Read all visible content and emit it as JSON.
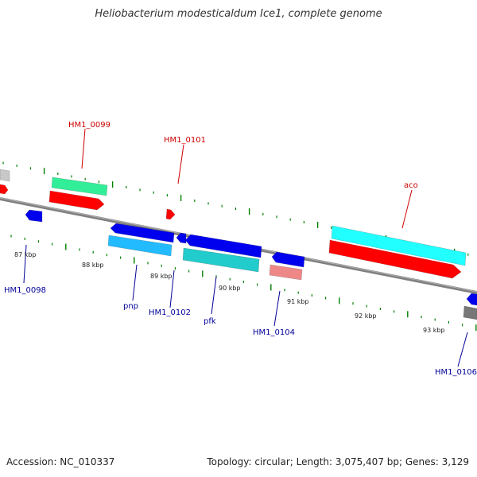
{
  "title": "Heliobacterium modesticaldum Ice1, complete genome",
  "footer": {
    "accession": "Accession: NC_010337",
    "summary": "Topology: circular; Length: 3,075,407 bp; Genes: 3,129"
  },
  "colors": {
    "label_red": "#cc0000",
    "label_blue": "#000099",
    "backbone": "#808080",
    "ticks": "#008000"
  },
  "ruler": [
    {
      "label": "87 kbp"
    },
    {
      "label": "88 kbp"
    },
    {
      "label": "89 kbp"
    },
    {
      "label": "90 kbp"
    },
    {
      "label": "91 kbp"
    },
    {
      "label": "92 kbp"
    },
    {
      "label": "93 kbp"
    }
  ],
  "gene_labels": [
    {
      "id": "HM1_0099",
      "side": "top"
    },
    {
      "id": "HM1_0101",
      "side": "top"
    },
    {
      "id": "aco",
      "side": "top"
    },
    {
      "id": "HM1_0098",
      "side": "bottom"
    },
    {
      "id": "pnp",
      "side": "bottom"
    },
    {
      "id": "HM1_0102",
      "side": "bottom"
    },
    {
      "id": "pfk",
      "side": "bottom"
    },
    {
      "id": "HM1_0104",
      "side": "bottom"
    },
    {
      "id": "HM1_0106",
      "side": "bottom"
    }
  ],
  "features": [
    {
      "name": "gray-feature-left",
      "color": "#c8c8c8"
    },
    {
      "name": "red-arrow-left-edge",
      "color": "#ff0000"
    },
    {
      "name": "green-feature",
      "color": "#33ee99"
    },
    {
      "name": "red-feature-0099",
      "color": "#ff0000"
    },
    {
      "name": "blue-arrow-0098",
      "color": "#0000ee"
    },
    {
      "name": "red-arrow-0101",
      "color": "#ff0000"
    },
    {
      "name": "blue-arrow-pnp",
      "color": "#0000ee"
    },
    {
      "name": "lightblue-feature-pnp",
      "color": "#22bbff"
    },
    {
      "name": "blue-arrow-0102",
      "color": "#0000ee"
    },
    {
      "name": "blue-arrow-pfk",
      "color": "#0000ee"
    },
    {
      "name": "teal-feature-pfk",
      "color": "#22cccc"
    },
    {
      "name": "blue-arrow-0104",
      "color": "#0000ee"
    },
    {
      "name": "pink-feature-0104",
      "color": "#ee8888"
    },
    {
      "name": "cyan-feature-aco",
      "color": "#22ffff"
    },
    {
      "name": "red-feature-aco",
      "color": "#ff0000"
    },
    {
      "name": "blue-arrow-0106",
      "color": "#0000ee"
    },
    {
      "name": "gray-feature-right",
      "color": "#777777"
    }
  ]
}
